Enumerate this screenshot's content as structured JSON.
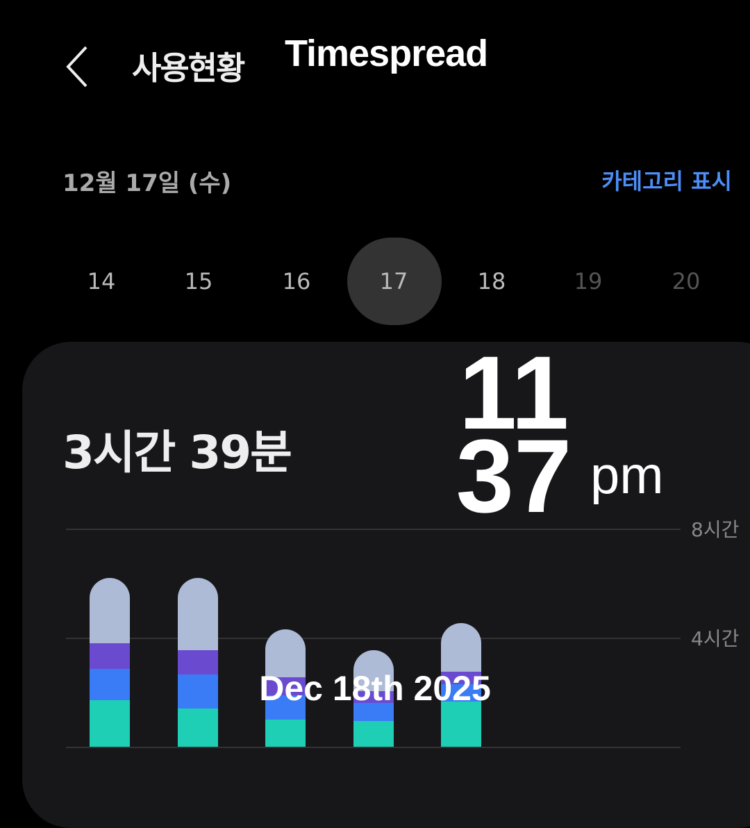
{
  "header": {
    "title": "사용현황",
    "brand": "Timespread"
  },
  "date_label": "12월 17일 (수)",
  "category_toggle": "카테고리 표시",
  "days": [
    {
      "label": "14",
      "state": "past"
    },
    {
      "label": "15",
      "state": "past"
    },
    {
      "label": "16",
      "state": "past"
    },
    {
      "label": "17",
      "state": "selected"
    },
    {
      "label": "18",
      "state": "past"
    },
    {
      "label": "19",
      "state": "future"
    },
    {
      "label": "20",
      "state": "future"
    }
  ],
  "total_usage": "3시간 39분",
  "overlay": {
    "hour": "11",
    "minute": "37",
    "ampm": "pm",
    "date": "Dec 18th 2025"
  },
  "chart_data": {
    "type": "bar",
    "stacked": true,
    "y_unit": "hours",
    "ylim": [
      0,
      8
    ],
    "y_ticks": [
      {
        "value": 8,
        "label": "8시간"
      },
      {
        "value": 4,
        "label": "4시간"
      }
    ],
    "colors": [
      "#1ecfb5",
      "#3a7cf5",
      "#6a4bd0",
      "#adbbd6"
    ],
    "bars": [
      [
        1.7,
        1.15,
        0.95,
        2.4
      ],
      [
        1.4,
        1.25,
        0.9,
        2.65
      ],
      [
        1.0,
        0.9,
        0.65,
        1.75
      ],
      [
        0.95,
        0.65,
        0.45,
        1.5
      ],
      [
        1.65,
        0.65,
        0.45,
        1.8
      ]
    ]
  }
}
